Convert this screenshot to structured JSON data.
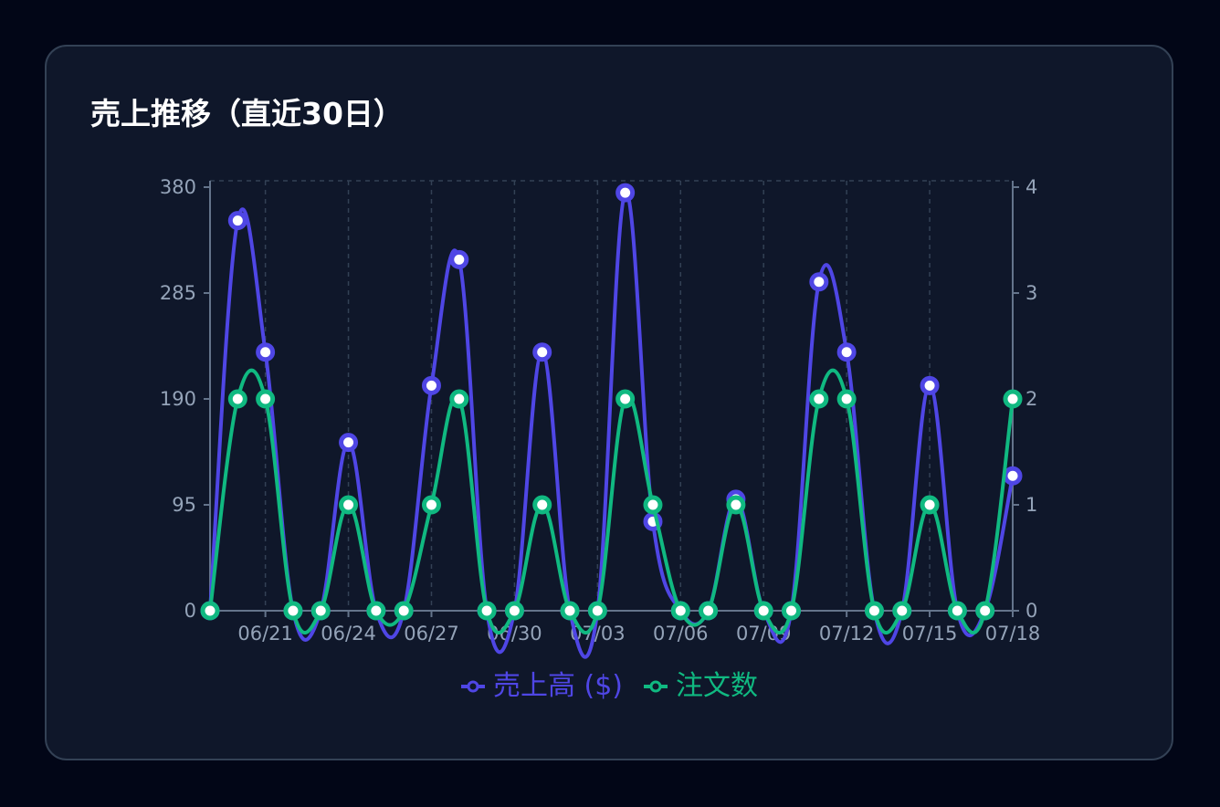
{
  "card": {
    "title": "売上推移（直近30日）"
  },
  "chart_data": {
    "type": "line",
    "title": "売上推移（直近30日）",
    "x": [
      "06/19",
      "06/20",
      "06/21",
      "06/22",
      "06/23",
      "06/24",
      "06/25",
      "06/26",
      "06/27",
      "06/28",
      "06/29",
      "06/30",
      "07/01",
      "07/02",
      "07/03",
      "07/04",
      "07/05",
      "07/06",
      "07/07",
      "07/08",
      "07/09",
      "07/10",
      "07/11",
      "07/12",
      "07/13",
      "07/14",
      "07/15",
      "07/16",
      "07/17",
      "07/18"
    ],
    "x_tick_labels": [
      "06/21",
      "06/24",
      "06/27",
      "06/30",
      "07/03",
      "07/06",
      "07/09",
      "07/12",
      "07/15",
      "07/18"
    ],
    "y_left": {
      "ticks": [
        "0",
        "95",
        "190",
        "285",
        "380"
      ],
      "range": [
        0,
        380
      ]
    },
    "y_right": {
      "ticks": [
        "0",
        "1",
        "2",
        "3",
        "4"
      ],
      "range": [
        0,
        4
      ]
    },
    "series": [
      {
        "name": "売上高 ($)",
        "axis": "left",
        "color": "#4f46e5",
        "values": [
          0,
          350,
          232,
          0,
          0,
          151,
          0,
          0,
          202,
          315,
          0,
          0,
          232,
          0,
          0,
          375,
          80,
          0,
          0,
          100,
          0,
          0,
          295,
          232,
          0,
          0,
          202,
          0,
          0,
          121
        ]
      },
      {
        "name": "注文数",
        "axis": "right",
        "color": "#10b981",
        "values": [
          0,
          2,
          2,
          0,
          0,
          1,
          0,
          0,
          1,
          2,
          0,
          0,
          1,
          0,
          0,
          2,
          1,
          0,
          0,
          1,
          0,
          0,
          2,
          2,
          0,
          0,
          1,
          0,
          0,
          2
        ]
      }
    ],
    "grid": true,
    "legend_position": "bottom"
  }
}
